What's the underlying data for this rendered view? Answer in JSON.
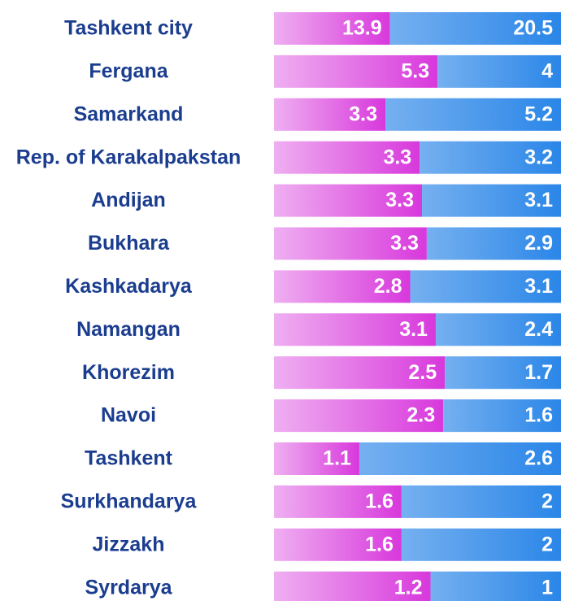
{
  "chart_data": {
    "type": "bar",
    "stacking": "percent",
    "orientation": "horizontal",
    "categories": [
      "Tashkent city",
      "Fergana",
      "Samarkand",
      "Rep. of Karakalpakstan",
      "Andijan",
      "Bukhara",
      "Kashkadarya",
      "Namangan",
      "Khorezim",
      "Navoi",
      "Tashkent",
      "Surkhandarya",
      "Jizzakh",
      "Syrdarya"
    ],
    "series": [
      {
        "color": "#d838dc",
        "values": [
          13.9,
          5.3,
          3.3,
          3.3,
          3.3,
          3.3,
          2.8,
          3.1,
          2.5,
          2.3,
          1.1,
          1.6,
          1.6,
          1.2
        ]
      },
      {
        "color": "#2a86e8",
        "values": [
          20.5,
          4,
          5.2,
          3.2,
          3.1,
          2.9,
          3.1,
          2.4,
          1.7,
          1.6,
          2.6,
          2,
          2,
          1
        ]
      }
    ]
  }
}
